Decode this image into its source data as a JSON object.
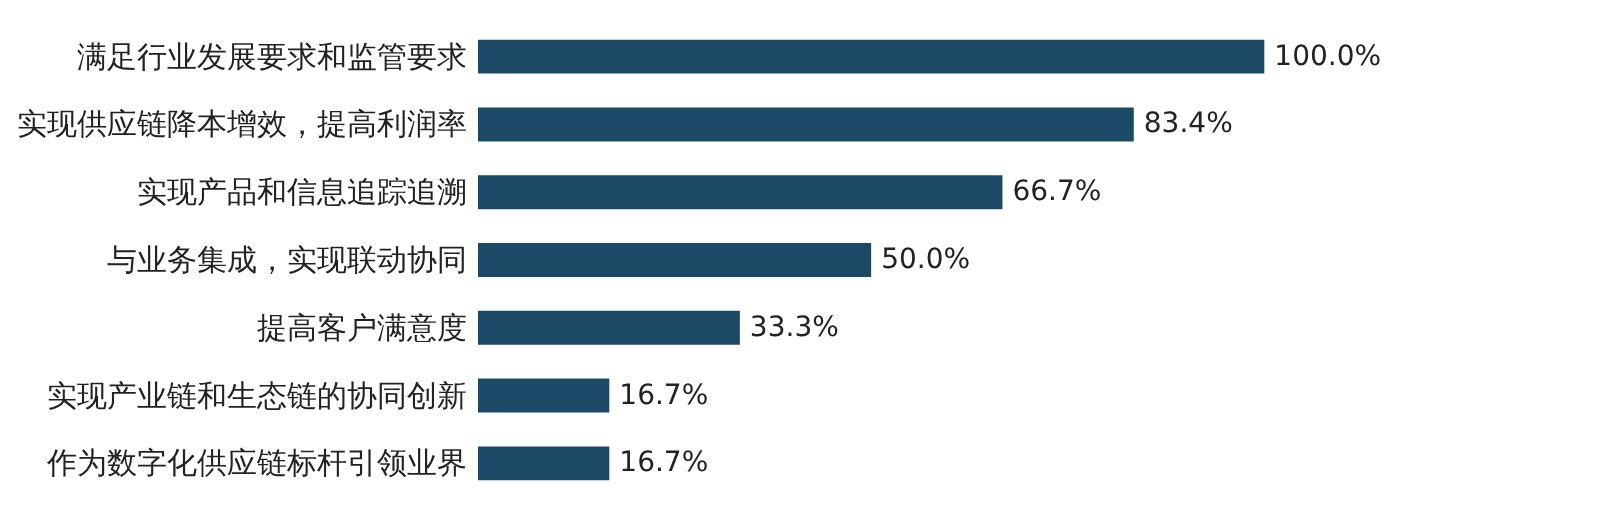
{
  "chart_data": {
    "type": "bar",
    "orientation": "horizontal",
    "categories": [
      "满足行业发展要求和监管要求",
      "实现供应链降本增效，提高利润率",
      "实现产品和信息追踪追溯",
      "与业务集成，实现联动协同",
      "提高客户满意度",
      "实现产业链和生态链的协同创新",
      "作为数字化供应链标杆引领业界"
    ],
    "values": [
      100.0,
      83.4,
      66.7,
      50.0,
      33.3,
      16.7,
      16.7
    ],
    "value_labels": [
      "100.0%",
      "83.4%",
      "66.7%",
      "50.0%",
      "33.3%",
      "16.7%",
      "16.7%"
    ],
    "color": "#1c4a66"
  }
}
